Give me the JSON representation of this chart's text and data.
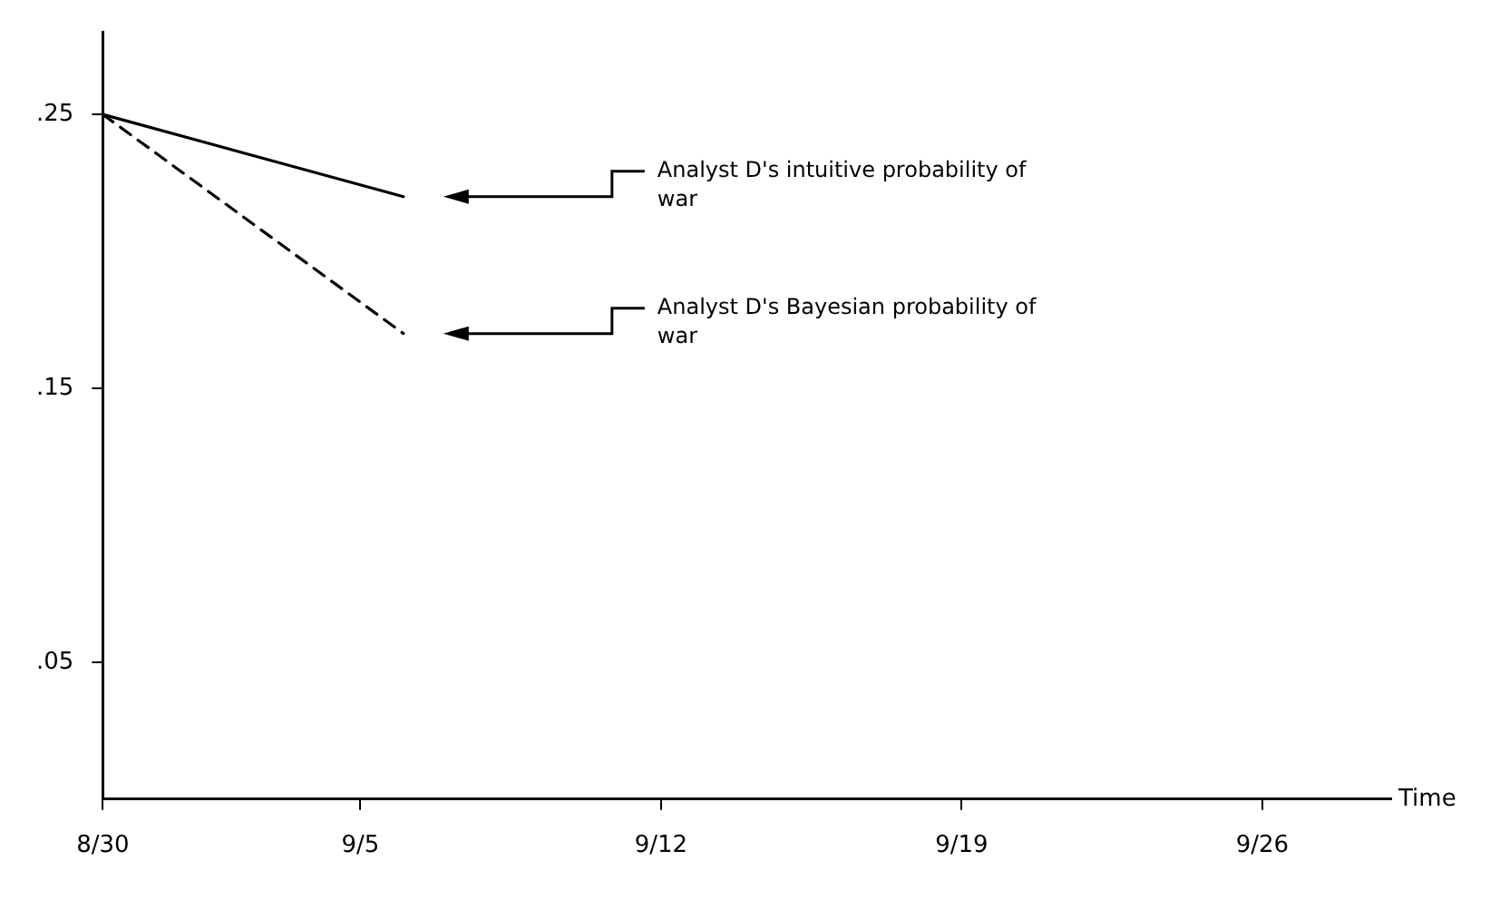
{
  "chart_data": {
    "type": "line",
    "xlabel": "Time",
    "x": [
      "--08-30",
      "--09-06"
    ],
    "series": [
      {
        "name": "Analyst D's intuitive probability of war",
        "color": "#000000",
        "line_style": "solid",
        "values": [
          0.25,
          0.22
        ]
      },
      {
        "name": "Analyst D's Bayesian probability of war",
        "color": "#000000",
        "line_style": "dashed",
        "values": [
          0.25,
          0.17
        ]
      }
    ],
    "xlim": [
      "--08-30",
      "--09-29"
    ],
    "xticks": [
      {
        "value": "--08-30",
        "label": "8/30"
      },
      {
        "value": "--09-05",
        "label": "9/5"
      },
      {
        "value": "--09-12",
        "label": "9/12"
      },
      {
        "value": "--09-19",
        "label": "9/19"
      },
      {
        "value": "--09-26",
        "label": "9/26"
      }
    ],
    "ylim": [
      0,
      0.28
    ],
    "yticks": [
      {
        "value": 0.05,
        "label": ".05"
      },
      {
        "value": 0.15,
        "label": ".15"
      },
      {
        "value": 0.25,
        "label": ".25"
      }
    ],
    "grid": false,
    "legend": false,
    "marker": "none"
  }
}
